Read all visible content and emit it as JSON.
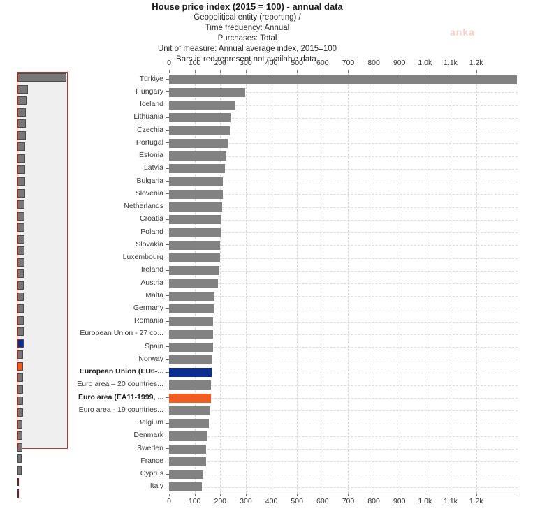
{
  "watermark": "anka",
  "colors": {
    "bar_gray": "#828282",
    "bar_blue": "#0b2e8e",
    "bar_orange": "#f05c22",
    "bar_na_red": "#7d1a15",
    "minimap_viewport_border": "#a73c30",
    "minimap_viewport_fill": "#efefef",
    "gridline": "#d6d6d6",
    "text": "#333333"
  },
  "chart_data": {
    "type": "bar",
    "orientation": "horizontal",
    "title": "House price index (2015 = 100) - annual data",
    "subtitle_lines": [
      "Geopolitical entity (reporting) /",
      "Time frequency: Annual",
      "Purchases: Total",
      "Unit of measure: Annual average index, 2015=100",
      "Bars in red represent not available data."
    ],
    "xlabel": "Annual average index, 2015=100",
    "ylabel": "",
    "xlim": [
      0,
      1362
    ],
    "grid": "vertical dashed every 100, horizontal dashed per row",
    "legend_position": "none",
    "x_ticks": [
      {
        "label": "0",
        "value": 0
      },
      {
        "label": "100",
        "value": 100
      },
      {
        "label": "200",
        "value": 200
      },
      {
        "label": "300",
        "value": 300
      },
      {
        "label": "400",
        "value": 400
      },
      {
        "label": "500",
        "value": 500
      },
      {
        "label": "600",
        "value": 600
      },
      {
        "label": "700",
        "value": 700
      },
      {
        "label": "800",
        "value": 800
      },
      {
        "label": "900",
        "value": 900
      },
      {
        "label": "1.0k",
        "value": 1000
      },
      {
        "label": "1.1k",
        "value": 1100
      },
      {
        "label": "1.2k",
        "value": 1200
      }
    ],
    "items": [
      {
        "label": "Türkiye",
        "value": 1360,
        "color": "gray",
        "bold": false
      },
      {
        "label": "Hungary",
        "value": 297,
        "color": "gray",
        "bold": false
      },
      {
        "label": "Iceland",
        "value": 259,
        "color": "gray",
        "bold": false
      },
      {
        "label": "Lithuania",
        "value": 241,
        "color": "gray",
        "bold": false
      },
      {
        "label": "Czechia",
        "value": 238,
        "color": "gray",
        "bold": false
      },
      {
        "label": "Portugal",
        "value": 230,
        "color": "gray",
        "bold": false
      },
      {
        "label": "Estonia",
        "value": 223,
        "color": "gray",
        "bold": false
      },
      {
        "label": "Latvia",
        "value": 217,
        "color": "gray",
        "bold": false
      },
      {
        "label": "Bulgaria",
        "value": 211,
        "color": "gray",
        "bold": false
      },
      {
        "label": "Slovenia",
        "value": 210,
        "color": "gray",
        "bold": false
      },
      {
        "label": "Netherlands",
        "value": 208,
        "color": "gray",
        "bold": false
      },
      {
        "label": "Croatia",
        "value": 204,
        "color": "gray",
        "bold": false
      },
      {
        "label": "Poland",
        "value": 202,
        "color": "gray",
        "bold": false
      },
      {
        "label": "Slovakia",
        "value": 200,
        "color": "gray",
        "bold": false
      },
      {
        "label": "Luxembourg",
        "value": 198,
        "color": "gray",
        "bold": false
      },
      {
        "label": "Ireland",
        "value": 196,
        "color": "gray",
        "bold": false
      },
      {
        "label": "Austria",
        "value": 192,
        "color": "gray",
        "bold": false
      },
      {
        "label": "Malta",
        "value": 177,
        "color": "gray",
        "bold": false
      },
      {
        "label": "Germany",
        "value": 175,
        "color": "gray",
        "bold": false
      },
      {
        "label": "Romania",
        "value": 173,
        "color": "gray",
        "bold": false
      },
      {
        "label": "European Union - 27 co...",
        "value": 172,
        "color": "gray",
        "bold": false
      },
      {
        "label": "Spain",
        "value": 171,
        "color": "gray",
        "bold": false
      },
      {
        "label": "Norway",
        "value": 170,
        "color": "gray",
        "bold": false
      },
      {
        "label": "European Union (EU6-...",
        "value": 166,
        "color": "blue",
        "bold": true
      },
      {
        "label": "Euro area – 20 countries...",
        "value": 163,
        "color": "gray",
        "bold": false
      },
      {
        "label": "Euro area (EA11-1999, ...",
        "value": 165,
        "color": "orange",
        "bold": true
      },
      {
        "label": "Euro area - 19 countries...",
        "value": 160,
        "color": "gray",
        "bold": false
      },
      {
        "label": "Belgium",
        "value": 156,
        "color": "gray",
        "bold": false
      },
      {
        "label": "Denmark",
        "value": 148,
        "color": "gray",
        "bold": false
      },
      {
        "label": "Sweden",
        "value": 146,
        "color": "gray",
        "bold": false
      },
      {
        "label": "France",
        "value": 144,
        "color": "gray",
        "bold": false
      },
      {
        "label": "Cyprus",
        "value": 134,
        "color": "gray",
        "bold": false
      },
      {
        "label": "Italy",
        "value": 127,
        "color": "gray",
        "bold": false
      }
    ]
  },
  "minimap": {
    "extra_items": [
      {
        "color": "gray",
        "value": 118
      },
      {
        "color": "gray",
        "value": 112
      },
      {
        "color": "red",
        "value": 5
      },
      {
        "color": "red",
        "value": 5
      }
    ]
  }
}
